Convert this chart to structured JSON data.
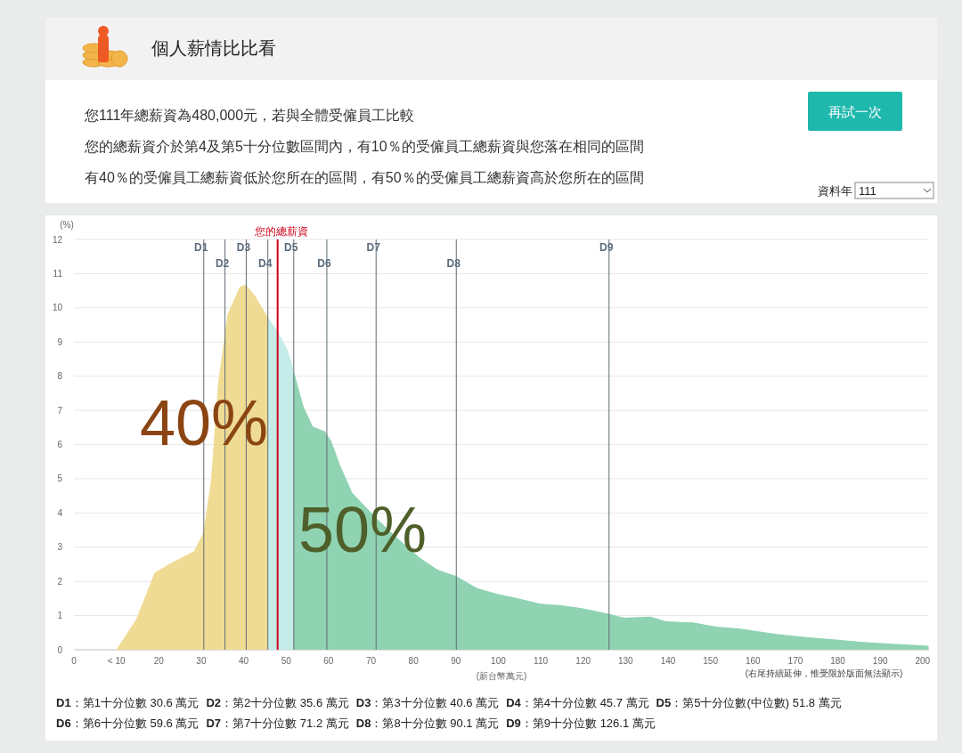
{
  "chart_data": {
    "type": "area",
    "title": "個人薪情比比看",
    "subtitle": "您111年總薪資為480,000元，若與全體受僱員工比較",
    "xlabel": "(新台幣萬元)",
    "ylabel": "(%)",
    "xlim": [
      0,
      201.5
    ],
    "xticks": [
      0,
      {
        "value": 10,
        "label": "< 10"
      },
      20,
      30,
      40,
      50,
      60,
      70,
      80,
      90,
      100,
      110,
      120,
      130,
      140,
      150,
      160,
      170,
      180,
      190,
      200
    ],
    "ylim": [
      0,
      12
    ],
    "yticks": [
      0,
      1,
      2,
      3,
      4,
      5,
      6,
      7,
      8,
      9,
      10,
      11,
      12
    ],
    "grid": "y",
    "series": [
      {
        "color": "#efdb94",
        "x": [
          10,
          14.7,
          19,
          22.6,
          28.3,
          30.5,
          32.3,
          34,
          36.2,
          39.1,
          40.5,
          42.7,
          45.7
        ],
        "values": [
          0,
          0.9,
          2.25,
          2.52,
          2.88,
          3.42,
          4.95,
          7.83,
          9.81,
          10.62,
          10.67,
          10.35,
          9.72
        ]
      },
      {
        "color": "#c5ece9",
        "x": [
          45.7,
          48,
          50.5,
          51.8
        ],
        "values": [
          9.72,
          9.32,
          8.73,
          8.15
        ]
      },
      {
        "color": "#8fd3b2",
        "x": [
          51.8,
          54.1,
          56.3,
          59.1,
          60.6,
          62.7,
          65.6,
          71.1,
          75.6,
          81.4,
          85.7,
          90,
          95,
          100,
          104.9,
          109.9,
          114.8,
          119.7,
          126.4,
          129.6,
          135.9,
          139.4,
          145.8,
          151.4,
          157,
          165.5,
          172.5,
          179.6,
          185.9,
          193.7,
          201.4
        ],
        "values": [
          8.15,
          7.11,
          6.53,
          6.39,
          6.12,
          5.4,
          4.59,
          3.87,
          3.33,
          2.7,
          2.34,
          2.16,
          1.8,
          1.63,
          1.5,
          1.35,
          1.3,
          1.22,
          1.04,
          0.94,
          0.97,
          0.83,
          0.8,
          0.68,
          0.62,
          0.46,
          0.37,
          0.3,
          0.23,
          0.17,
          0.12
        ]
      }
    ],
    "ref_lines": [
      {
        "axis": "x",
        "value": 48,
        "label": "您的總薪資",
        "color": "#d0021b"
      },
      {
        "axis": "x",
        "value": 30.6,
        "label": "D1",
        "color": "#5f6b73"
      },
      {
        "axis": "x",
        "value": 35.6,
        "label": "D2",
        "color": "#5f6b73"
      },
      {
        "axis": "x",
        "value": 40.6,
        "label": "D3",
        "color": "#5f6b73"
      },
      {
        "axis": "x",
        "value": 45.7,
        "label": "D4",
        "color": "#5f6b73"
      },
      {
        "axis": "x",
        "value": 51.8,
        "label": "D5",
        "color": "#5f6b73"
      },
      {
        "axis": "x",
        "value": 59.6,
        "label": "D6",
        "color": "#5f6b73"
      },
      {
        "axis": "x",
        "value": 71.2,
        "label": "D7",
        "color": "#5f6b73"
      },
      {
        "axis": "x",
        "value": 90.1,
        "label": "D8",
        "color": "#5f6b73"
      },
      {
        "axis": "x",
        "value": 126.1,
        "label": "D9",
        "color": "#5f6b73"
      }
    ],
    "annotations": [
      "您的總薪資介於第4及第5十分位數區間內，有10％的受僱員工總薪資與您落在相同的區間",
      "有40％的受僱員工總薪資低於您所在的區間，有50％的受僱員工總薪資高於您所在的區間",
      "再試一次",
      "資料年",
      "111",
      "40%",
      "50%",
      "(右尾持續延伸，惟受限於版面無法顯示)",
      "D1：第1十分位數 30.6 萬元",
      "D2：第2十分位數 35.6 萬元",
      "D3：第3十分位數 40.6 萬元",
      "D4：第4十分位數 45.7 萬元",
      "D5：第5十分位數(中位數) 51.8 萬元",
      "D6：第6十分位數 59.6 萬元",
      "D7：第7十分位數 71.2 萬元",
      "D8：第8十分位數 90.1 萬元",
      "D9：第9十分位數 126.1 萬元"
    ]
  }
}
